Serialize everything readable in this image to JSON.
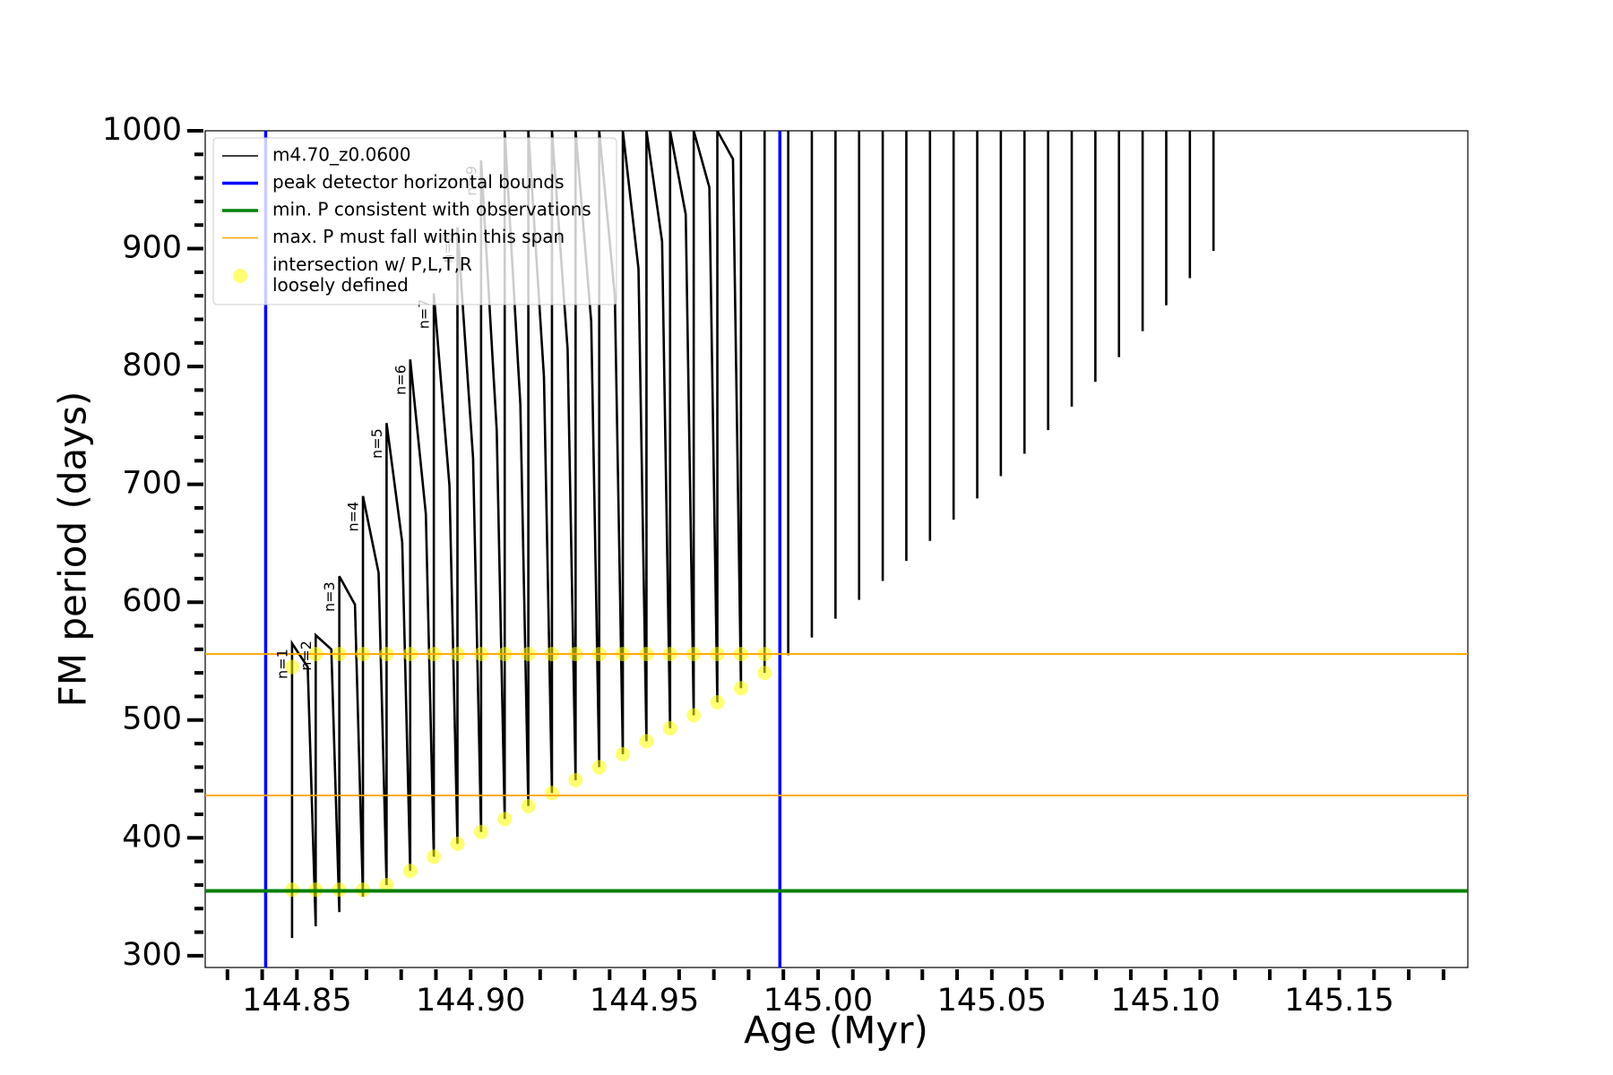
{
  "chart_data": {
    "type": "line",
    "xlabel": "Age (Myr)",
    "ylabel": "FM period (days)",
    "xlim": [
      144.8236,
      145.187
    ],
    "ylim": [
      290,
      1000
    ],
    "xticks": [
      144.85,
      {
        "value": 144.9,
        "label": "144.90"
      },
      144.95,
      {
        "value": 145.0,
        "label": "145.00"
      },
      145.05,
      {
        "value": 145.1,
        "label": "145.10"
      },
      145.15
    ],
    "xticks_minor": [
      144.83,
      144.84,
      144.86,
      144.87,
      144.88,
      144.89,
      144.91,
      144.92,
      144.93,
      144.94,
      144.96,
      144.97,
      144.98,
      144.99,
      145.01,
      145.02,
      145.03,
      145.04,
      145.06,
      145.07,
      145.08,
      145.09,
      145.11,
      145.12,
      145.13,
      145.14,
      145.16,
      145.17,
      145.18
    ],
    "yticks": [
      300,
      400,
      500,
      600,
      700,
      800,
      900,
      1000
    ],
    "yticks_minor": [
      320,
      340,
      360,
      380,
      420,
      440,
      460,
      480,
      520,
      540,
      560,
      580,
      620,
      640,
      660,
      680,
      720,
      740,
      760,
      780,
      820,
      840,
      860,
      880,
      920,
      940,
      960,
      980
    ],
    "legend_loc": "upper left",
    "series": [
      {
        "name": "m4.70_z0.0600",
        "color": "#000000",
        "x": [
          144.8486,
          144.8486,
          144.8531,
          144.8554,
          144.8554,
          144.8599,
          144.8622,
          144.8622,
          144.8667,
          144.869,
          144.869,
          144.8735,
          144.8758,
          144.8758,
          144.8803,
          144.8826,
          144.8826,
          144.8871,
          144.8894,
          144.8894,
          144.8939,
          144.8962,
          144.8962,
          144.9007,
          144.903,
          144.903,
          144.9075,
          144.9098,
          144.9098,
          144.9143,
          144.9166,
          144.9166,
          144.9211,
          144.9234,
          144.9234,
          144.9279,
          144.9302,
          144.9302,
          144.9347,
          144.937,
          144.937,
          144.9415,
          144.9438,
          144.9438,
          144.9483,
          144.9506,
          144.9506,
          144.9551,
          144.9574,
          144.9574,
          144.9619,
          144.9642,
          144.9642,
          144.9687,
          144.971,
          144.971,
          144.9755,
          144.9778,
          144.9778,
          null,
          144.9846,
          144.9846,
          null,
          144.9914,
          144.9914,
          null,
          144.9982,
          144.9982,
          null,
          145.005,
          145.005,
          null,
          145.0118,
          145.0118,
          null,
          145.0186,
          145.0186,
          null,
          145.0254,
          145.0254,
          null,
          145.0322,
          145.0322,
          null,
          145.039,
          145.039,
          null,
          145.0458,
          145.0458,
          null,
          145.0526,
          145.0526,
          null,
          145.0594,
          145.0594,
          null,
          145.0662,
          145.0662,
          null,
          145.073,
          145.073,
          null,
          145.0798,
          145.0798,
          null,
          145.0866,
          145.0866,
          null,
          145.0934,
          145.0934,
          null,
          145.1002,
          145.1002,
          null,
          145.107,
          145.107,
          null,
          145.1138,
          145.1138
        ],
        "values": [
          315,
          565,
          545,
          325,
          572,
          560,
          337,
          622,
          598,
          350,
          690,
          625,
          360,
          752,
          651,
          372,
          806,
          675,
          384,
          862,
          699,
          395,
          918,
          722,
          405,
          975,
          746,
          416,
          1000,
          768,
          427,
          1000,
          791,
          438,
          1000,
          815,
          449,
          1000,
          838,
          460,
          1000,
          860,
          471,
          1000,
          883,
          482,
          1000,
          906,
          493,
          1000,
          929,
          504,
          1000,
          952,
          515,
          1000,
          976,
          527,
          1000,
          null,
          540,
          1000,
          null,
          555,
          1000,
          null,
          570,
          1000,
          null,
          586,
          1000,
          null,
          602,
          1000,
          null,
          618,
          1000,
          null,
          635,
          1000,
          null,
          652,
          1000,
          null,
          670,
          1000,
          null,
          688,
          1000,
          null,
          707,
          1000,
          null,
          726,
          1000,
          null,
          746,
          1000,
          null,
          766,
          1000,
          null,
          787,
          1000,
          null,
          808,
          1000,
          null,
          830,
          1000,
          null,
          852,
          1000,
          null,
          875,
          1000,
          null,
          898,
          1000
        ]
      },
      {
        "name": "intersection w/ P,L,T,R\nloosely defined",
        "type": "scatter",
        "color": "#ffff00",
        "x": [
          144.8486,
          144.8486,
          144.8554,
          144.8554,
          144.8622,
          144.8622,
          144.869,
          144.869,
          144.8758,
          144.8758,
          144.8826,
          144.8826,
          144.8894,
          144.8894,
          144.8962,
          144.8962,
          144.903,
          144.903,
          144.9098,
          144.9098,
          144.9166,
          144.9166,
          144.9234,
          144.9234,
          144.9302,
          144.9302,
          144.937,
          144.937,
          144.9438,
          144.9438,
          144.9506,
          144.9506,
          144.9574,
          144.9574,
          144.9642,
          144.9642,
          144.971,
          144.971,
          144.9778,
          144.9778,
          144.9846,
          144.9846
        ],
        "values": [
          545,
          356,
          556,
          356,
          556,
          356,
          556,
          356,
          556,
          360,
          556,
          372,
          556,
          384,
          556,
          395,
          556,
          405,
          556,
          416,
          556,
          427,
          556,
          438,
          556,
          449,
          556,
          460,
          556,
          471,
          556,
          482,
          556,
          493,
          556,
          504,
          556,
          515,
          556,
          527,
          556,
          540
        ]
      }
    ],
    "vlines": [
      {
        "name": "peak detector horizontal bounds",
        "color": "#0000ff",
        "values": [
          144.841,
          144.989
        ]
      }
    ],
    "hlines": [
      {
        "name": "min. P consistent with observations",
        "color": "#008000",
        "values": [
          355
        ]
      },
      {
        "name": "max. P must fall within this span",
        "color": "#ffa500",
        "values": [
          556,
          436
        ]
      }
    ],
    "annotations": [
      "n=1",
      "n=2",
      "n=3",
      "n=4",
      "n=5",
      "n=6",
      "n=7",
      "n=8",
      "n=9"
    ]
  }
}
